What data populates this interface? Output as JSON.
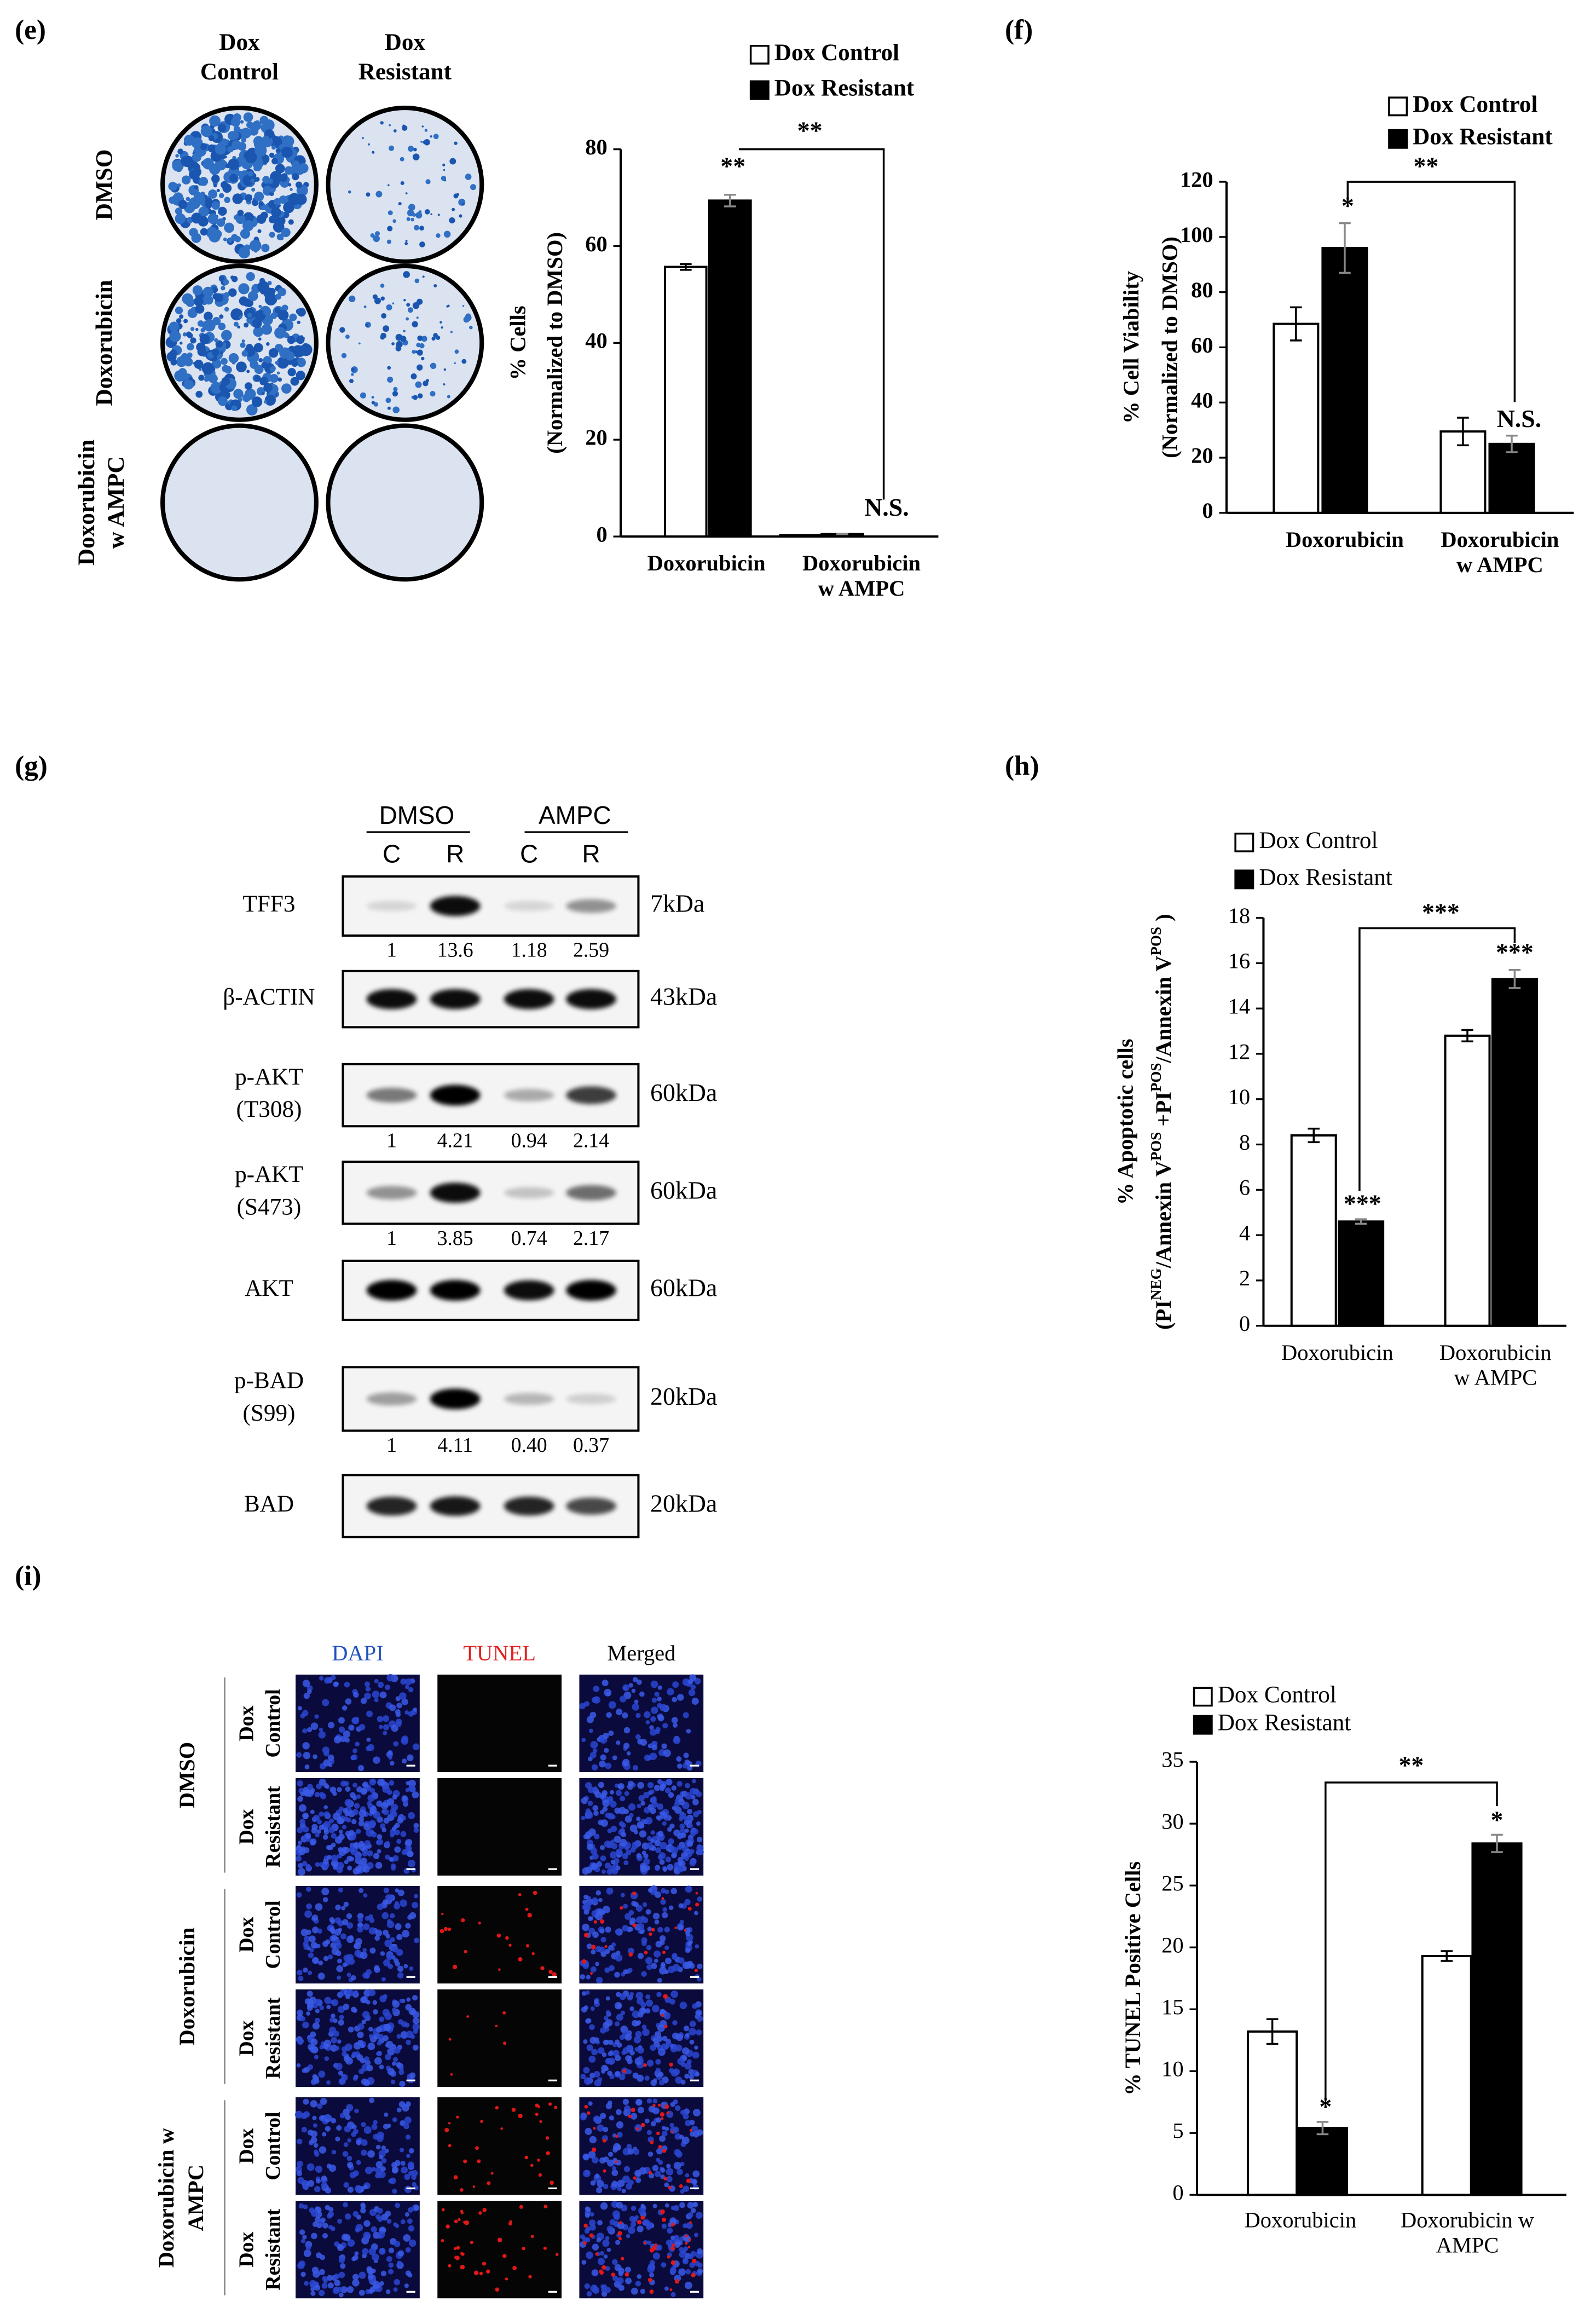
{
  "panel_labels": [
    "(e)",
    "(f)",
    "(g)",
    "(h)",
    "(i)"
  ],
  "colony_assay": {
    "columns": [
      [
        "Dox",
        "Control"
      ],
      [
        "Dox",
        "Resistant"
      ]
    ],
    "rows": [
      [
        "DMSO"
      ],
      [
        "Doxorubicin"
      ],
      [
        "Doxorubicin",
        "w AMPC"
      ]
    ]
  },
  "western_blot": {
    "groups": [
      "DMSO",
      "AMPC"
    ],
    "lanes": [
      "C",
      "R",
      "C",
      "R"
    ],
    "blots": [
      {
        "label": [
          "TFF3"
        ],
        "size": "7kDa",
        "quant": [
          "1",
          "13.6",
          "1.18",
          "2.59"
        ]
      },
      {
        "label": [
          "β-ACTIN"
        ],
        "size": "43kDa"
      },
      {
        "label": [
          "p-AKT",
          "(T308)"
        ],
        "size": "60kDa",
        "quant": [
          "1",
          "4.21",
          "0.94",
          "2.14"
        ]
      },
      {
        "label": [
          "p-AKT",
          "(S473)"
        ],
        "size": "60kDa",
        "quant": [
          "1",
          "3.85",
          "0.74",
          "2.17"
        ]
      },
      {
        "label": [
          "AKT"
        ],
        "size": "60kDa"
      },
      {
        "label": [
          "p-BAD",
          "(S99)"
        ],
        "size": "20kDa",
        "quant": [
          "1",
          "4.11",
          "0.40",
          "0.37"
        ]
      },
      {
        "label": [
          "BAD"
        ],
        "size": "20kDa"
      }
    ]
  },
  "tunel_images": {
    "channels": [
      "DAPI",
      "TUNEL",
      "Merged"
    ],
    "treatments": [
      [
        "DMSO"
      ],
      [
        "Doxorubicin"
      ],
      [
        "Doxorubicin w",
        "AMPC"
      ]
    ],
    "cells": [
      [
        "Dox",
        "Control"
      ],
      [
        "Dox",
        "Resistant"
      ]
    ]
  },
  "chart_data": [
    {
      "type": "bar",
      "categories": [
        "Doxorubicin",
        "Doxorubicin w AMPC"
      ],
      "series": [
        {
          "name": "Dox Control",
          "color": "#ffffff",
          "values": [
            55.7,
            0.3
          ],
          "errors": [
            0.6,
            0
          ]
        },
        {
          "name": "Dox Resistant",
          "color": "#000000",
          "values": [
            69.4,
            0.5
          ],
          "errors": [
            1.2,
            0
          ]
        }
      ],
      "y_label": [
        "% Cells",
        "(Normalized to DMSO)"
      ],
      "ylim": [
        0,
        80
      ],
      "yticks": [
        0,
        20,
        40,
        60,
        80
      ],
      "annotations": [
        "**",
        "**",
        "N.S."
      ]
    },
    {
      "type": "bar",
      "categories": [
        "Doxorubicin",
        "Doxorubicin w AMPC"
      ],
      "series": [
        {
          "name": "Dox Control",
          "color": "#ffffff",
          "values": [
            68.5,
            29.5
          ],
          "errors": [
            6,
            5
          ]
        },
        {
          "name": "Dox Resistant",
          "color": "#000000",
          "values": [
            96,
            25
          ],
          "errors": [
            9,
            3
          ]
        }
      ],
      "y_label": [
        "% Cell Viability",
        "(Normalized to DMSO)"
      ],
      "ylim": [
        0,
        120
      ],
      "yticks": [
        0,
        20,
        40,
        60,
        80,
        100,
        120
      ],
      "annotations": [
        "*",
        "**",
        "N.S."
      ]
    },
    {
      "type": "bar",
      "categories": [
        "Doxorubicin",
        "Doxorubicin w AMPC"
      ],
      "series": [
        {
          "name": "Dox Control",
          "color": "#ffffff",
          "values": [
            8.4,
            12.8
          ],
          "errors": [
            0.3,
            0.25
          ]
        },
        {
          "name": "Dox Resistant",
          "color": "#000000",
          "values": [
            4.6,
            15.3
          ],
          "errors": [
            0.1,
            0.4
          ]
        }
      ],
      "y_label": [
        "% Apoptotic cells",
        [
          "(PI",
          "NEG",
          "/Annexin V",
          "POS",
          " +PI",
          "POS",
          "/Annexin V",
          "POS",
          " )"
        ]
      ],
      "ylim": [
        0,
        18
      ],
      "yticks": [
        0,
        2,
        4,
        6,
        8,
        10,
        12,
        14,
        16,
        18
      ],
      "annotations": [
        "***",
        "***",
        "***"
      ]
    },
    {
      "type": "bar",
      "categories": [
        "Doxorubicin",
        "Doxorubicin w AMPC"
      ],
      "series": [
        {
          "name": "Dox Control",
          "color": "#ffffff",
          "values": [
            13.2,
            19.3
          ],
          "errors": [
            1,
            0.4
          ]
        },
        {
          "name": "Dox Resistant",
          "color": "#000000",
          "values": [
            5.4,
            28.4
          ],
          "errors": [
            0.5,
            0.7
          ]
        }
      ],
      "y_label": [
        "% TUNEL Positive Cells"
      ],
      "ylim": [
        0,
        35
      ],
      "yticks": [
        0,
        5,
        10,
        15,
        20,
        25,
        30,
        35
      ],
      "annotations": [
        "**",
        "*",
        "*"
      ]
    }
  ]
}
